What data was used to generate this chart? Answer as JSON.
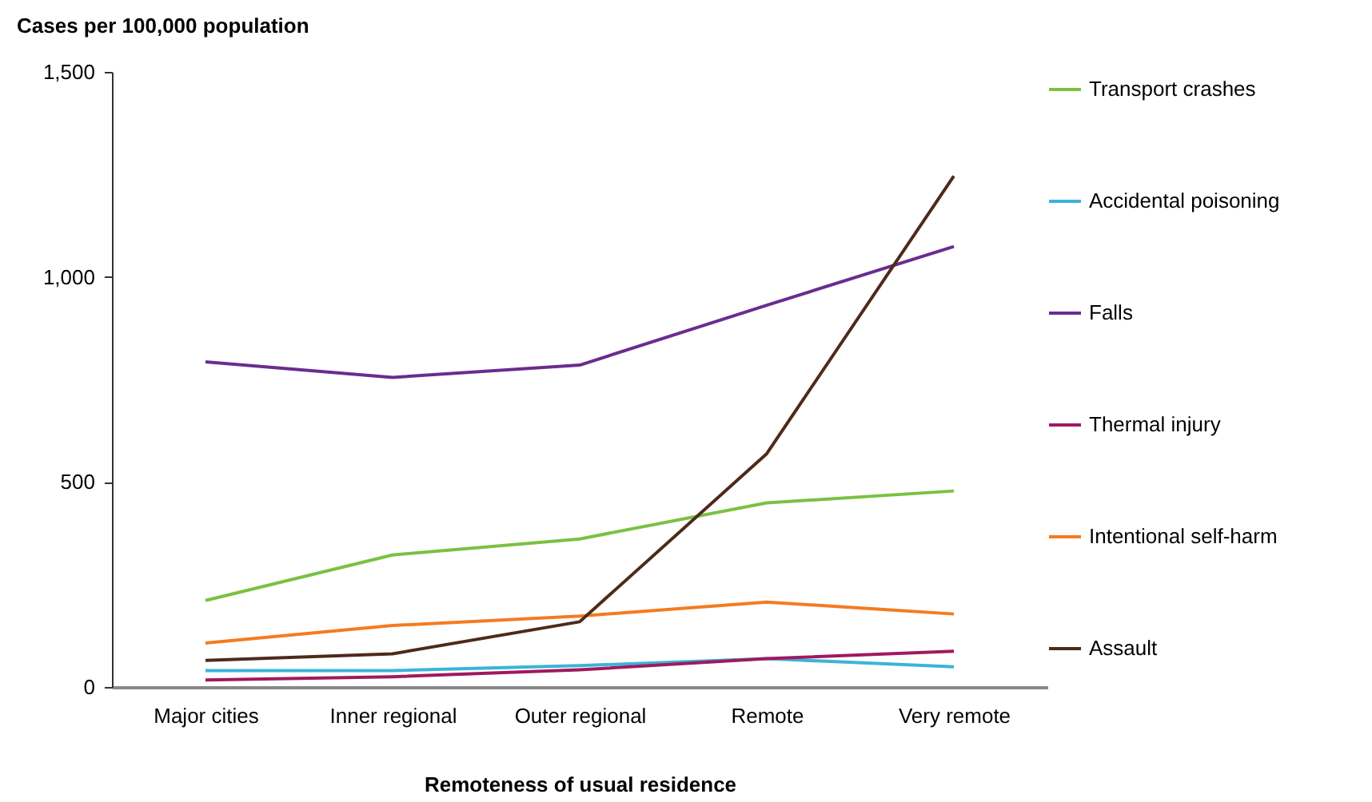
{
  "chart_data": {
    "type": "line",
    "xlabel": "Remoteness of usual residence",
    "ylabel": "Cases per 100,000 population",
    "categories": [
      "Major cities",
      "Inner regional",
      "Outer regional",
      "Remote",
      "Very remote"
    ],
    "ylim": [
      0,
      1500
    ],
    "yticks": [
      {
        "value": 0,
        "label": "0"
      },
      {
        "value": 500,
        "label": "500"
      },
      {
        "value": 1000,
        "label": "1,000"
      },
      {
        "value": 1500,
        "label": "1,500"
      }
    ],
    "grid": false,
    "legend": "right",
    "marker": "none",
    "line_style": "solid",
    "series": [
      {
        "name": "Transport crashes",
        "color": "#7ac143",
        "values": [
          211,
          322,
          361,
          449,
          478
        ]
      },
      {
        "name": "Accidental poisoning",
        "color": "#3bb4d8",
        "values": [
          40,
          40,
          52,
          69,
          49
        ]
      },
      {
        "name": "Falls",
        "color": "#6a2c91",
        "values": [
          793,
          755,
          785,
          931,
          1074
        ]
      },
      {
        "name": "Thermal injury",
        "color": "#a0195f",
        "values": [
          17,
          25,
          42,
          69,
          87
        ]
      },
      {
        "name": "Intentional self-harm",
        "color": "#f47b20",
        "values": [
          107,
          150,
          173,
          207,
          178
        ]
      },
      {
        "name": "Assault",
        "color": "#4e2a1a",
        "values": [
          65,
          81,
          159,
          569,
          1246
        ]
      }
    ]
  }
}
